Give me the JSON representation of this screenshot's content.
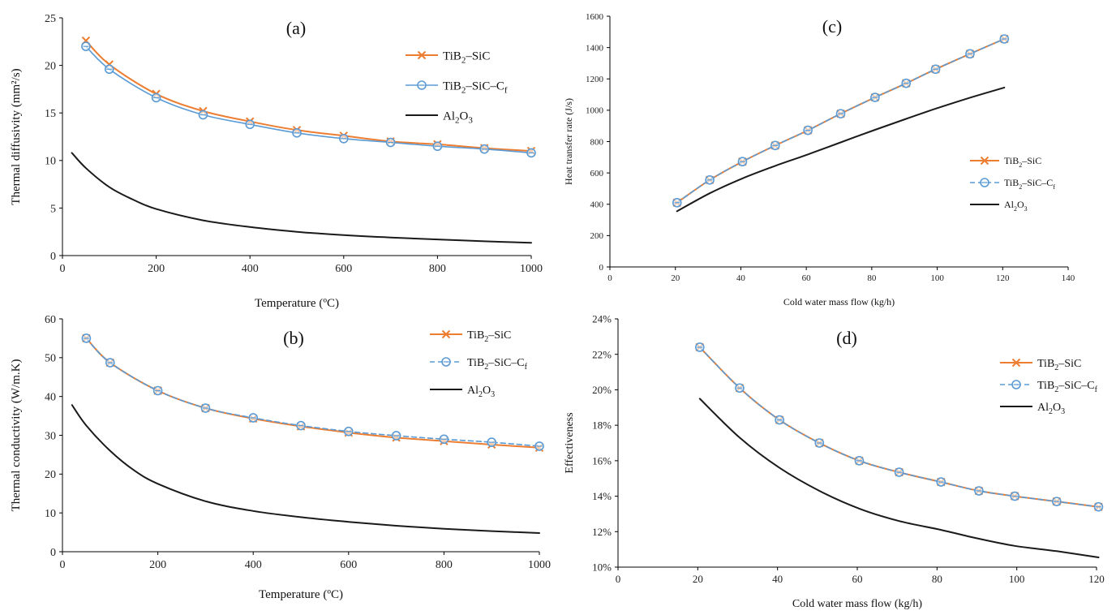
{
  "figure": {
    "colors": {
      "tib2_sic": "#ED7D31",
      "tib2_sic_cf": "#5B9BD5",
      "al2o3": "#1A1A1A"
    }
  },
  "chart_data": [
    {
      "id": "a",
      "panel_label": "(a)",
      "type": "line",
      "xlabel": "Temperature (ºC)",
      "ylabel": "Thermal diffusivity (mm²/s)",
      "xlim": [
        0,
        1000
      ],
      "ylim": [
        0,
        25
      ],
      "xticks": [
        0,
        200,
        400,
        600,
        800,
        1000
      ],
      "yticks": [
        0,
        5,
        10,
        15,
        20,
        25
      ],
      "legend": [
        "TiB₂–SiC",
        "TiB₂–SiC–Cf",
        "Al₂O₃"
      ],
      "series": [
        {
          "name": "TiB₂–SiC",
          "x": [
            50,
            100,
            200,
            300,
            400,
            500,
            600,
            700,
            800,
            900,
            1000
          ],
          "y": [
            22.6,
            20.1,
            17.0,
            15.2,
            14.1,
            13.2,
            12.6,
            12.0,
            11.7,
            11.3,
            11.0
          ]
        },
        {
          "name": "TiB₂–SiC–Cf",
          "x": [
            50,
            100,
            200,
            300,
            400,
            500,
            600,
            700,
            800,
            900,
            1000
          ],
          "y": [
            22.0,
            19.6,
            16.6,
            14.8,
            13.8,
            12.9,
            12.3,
            11.9,
            11.5,
            11.2,
            10.8
          ]
        },
        {
          "name": "Al₂O₃",
          "x": [
            20,
            50,
            100,
            150,
            200,
            300,
            400,
            500,
            600,
            700,
            800,
            900,
            1000
          ],
          "y": [
            10.8,
            9.2,
            7.2,
            5.9,
            4.9,
            3.7,
            3.0,
            2.5,
            2.15,
            1.9,
            1.7,
            1.5,
            1.35
          ]
        }
      ]
    },
    {
      "id": "c",
      "panel_label": "(c)",
      "type": "line",
      "xlabel": "Cold water mass flow (kg/h)",
      "ylabel": "Heat transfer rate (J/s)",
      "xlim": [
        0,
        140
      ],
      "ylim": [
        0,
        1600
      ],
      "xticks": [
        0,
        20,
        40,
        60,
        80,
        100,
        120,
        140
      ],
      "yticks": [
        0,
        200,
        400,
        600,
        800,
        1000,
        1200,
        1400,
        1600
      ],
      "legend": [
        "TiB₂–SiC",
        "TiB₂–SiC–Cf",
        "Al₂O₃"
      ],
      "series": [
        {
          "name": "TiB₂–SiC",
          "x": [
            20.5,
            30.5,
            40.5,
            50.5,
            60.5,
            70.5,
            81,
            90.5,
            99.5,
            110,
            120.5
          ],
          "y": [
            410,
            555,
            672,
            775,
            872,
            978,
            1082,
            1172,
            1262,
            1360,
            1455
          ]
        },
        {
          "name": "TiB₂–SiC–Cf",
          "x": [
            20.5,
            30.5,
            40.5,
            50.5,
            60.5,
            70.5,
            81,
            90.5,
            99.5,
            110,
            120.5
          ],
          "y": [
            410,
            555,
            672,
            775,
            872,
            978,
            1082,
            1172,
            1262,
            1360,
            1455
          ]
        },
        {
          "name": "Al₂O₃",
          "x": [
            20.5,
            30.5,
            40.5,
            50.5,
            60.5,
            70.5,
            81,
            90.5,
            99.5,
            110,
            120.5
          ],
          "y": [
            355,
            470,
            565,
            645,
            718,
            795,
            875,
            945,
            1010,
            1080,
            1145
          ]
        }
      ]
    },
    {
      "id": "b",
      "panel_label": "(b)",
      "type": "line",
      "xlabel": "Temperature (ºC)",
      "ylabel": "Thermal conductivity (W/m.K)",
      "xlim": [
        0,
        1000
      ],
      "ylim": [
        0,
        60
      ],
      "xticks": [
        0,
        200,
        400,
        600,
        800,
        1000
      ],
      "yticks": [
        0,
        10,
        20,
        30,
        40,
        50,
        60
      ],
      "legend": [
        "TiB₂–SiC",
        "TiB₂–SiC–Cf",
        "Al₂O₃"
      ],
      "series": [
        {
          "name": "TiB₂–SiC",
          "x": [
            50,
            100,
            200,
            300,
            400,
            500,
            600,
            700,
            800,
            900,
            1000
          ],
          "y": [
            55,
            48.7,
            41.5,
            37.0,
            34.3,
            32.3,
            30.7,
            29.4,
            28.5,
            27.6,
            26.8
          ]
        },
        {
          "name": "TiB₂–SiC–Cf",
          "x": [
            50,
            100,
            200,
            300,
            400,
            500,
            600,
            700,
            800,
            900,
            1000
          ],
          "y": [
            55,
            48.7,
            41.5,
            37.0,
            34.5,
            32.5,
            31.0,
            29.9,
            29.0,
            28.2,
            27.2
          ]
        },
        {
          "name": "Al₂O₃",
          "x": [
            20,
            50,
            100,
            150,
            200,
            300,
            400,
            500,
            600,
            700,
            800,
            900,
            1000
          ],
          "y": [
            37.8,
            32.5,
            26.0,
            21.0,
            17.5,
            13.0,
            10.5,
            8.9,
            7.7,
            6.7,
            5.9,
            5.3,
            4.8
          ]
        }
      ]
    },
    {
      "id": "d",
      "panel_label": "(d)",
      "type": "line",
      "xlabel": "Cold water mass flow (kg/h)",
      "ylabel": "Effectiveness",
      "xlim": [
        0,
        120
      ],
      "ylim": [
        10,
        24
      ],
      "y_unit": "%",
      "xticks": [
        0,
        20,
        40,
        60,
        80,
        100,
        120
      ],
      "yticks": [
        10,
        12,
        14,
        16,
        18,
        20,
        22,
        24
      ],
      "ytick_labels": [
        "10%",
        "12%",
        "14%",
        "16%",
        "18%",
        "20%",
        "22%",
        "24%"
      ],
      "legend": [
        "TiB₂–SiC",
        "TiB₂–SiC–Cf",
        "Al₂O₃"
      ],
      "series": [
        {
          "name": "TiB₂–SiC",
          "x": [
            20.5,
            30.5,
            40.5,
            50.5,
            60.5,
            70.5,
            81,
            90.5,
            99.5,
            110,
            120.5
          ],
          "y": [
            22.4,
            20.1,
            18.3,
            17.0,
            16.0,
            15.35,
            14.8,
            14.3,
            14.0,
            13.7,
            13.4
          ]
        },
        {
          "name": "TiB₂–SiC–Cf",
          "x": [
            20.5,
            30.5,
            40.5,
            50.5,
            60.5,
            70.5,
            81,
            90.5,
            99.5,
            110,
            120.5
          ],
          "y": [
            22.4,
            20.1,
            18.3,
            17.0,
            16.0,
            15.35,
            14.8,
            14.3,
            14.0,
            13.7,
            13.4
          ]
        },
        {
          "name": "Al₂O₃",
          "x": [
            20.5,
            30.5,
            40.5,
            50.5,
            60.5,
            70.5,
            81,
            90.5,
            99.5,
            110,
            120.5
          ],
          "y": [
            19.5,
            17.3,
            15.6,
            14.3,
            13.3,
            12.6,
            12.1,
            11.6,
            11.2,
            10.9,
            10.55
          ]
        }
      ]
    }
  ]
}
